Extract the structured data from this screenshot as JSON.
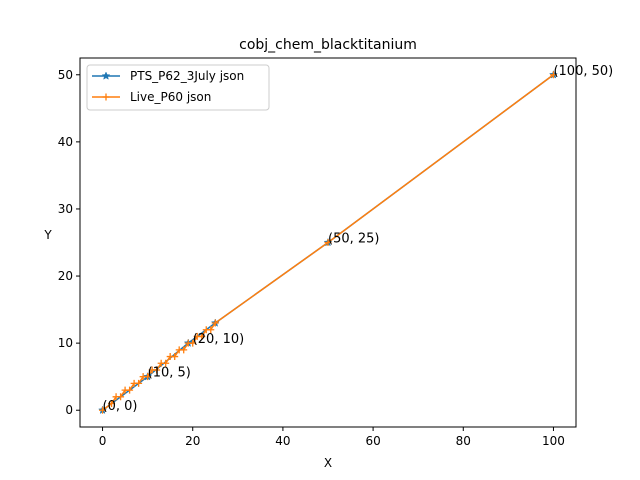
{
  "chart_data": {
    "type": "line",
    "title": "cobj_chem_blacktitanium",
    "xlabel": "X",
    "ylabel": "Y",
    "xlim": [
      -5,
      105
    ],
    "ylim": [
      -2.5,
      52.5
    ],
    "xticks": [
      0,
      20,
      40,
      60,
      80,
      100
    ],
    "yticks": [
      0,
      10,
      20,
      30,
      40,
      50
    ],
    "grid": false,
    "legend_position": "top-left",
    "series": [
      {
        "name": "PTS_P62_3July json",
        "color": "#1f77b4",
        "marker": "star",
        "x": [
          0,
          10,
          19,
          25,
          50,
          100
        ],
        "y": [
          0,
          5,
          10,
          13,
          25,
          50
        ]
      },
      {
        "name": "Live_P60 json",
        "color": "#ff7f0e",
        "marker": "plus",
        "x": [
          0,
          2,
          3,
          4,
          5,
          6,
          7,
          8,
          9,
          10,
          11,
          12,
          13,
          14,
          15,
          16,
          17,
          18,
          19,
          20,
          21,
          22,
          23,
          24,
          25,
          50,
          100
        ],
        "y": [
          0,
          1,
          2,
          2,
          3,
          3,
          4,
          4,
          5,
          5,
          6,
          6,
          7,
          7,
          8,
          8,
          9,
          9,
          10,
          10,
          11,
          11,
          12,
          12,
          13,
          25,
          50
        ]
      }
    ],
    "annotations": [
      {
        "text": "(0, 0)",
        "x": 0,
        "y": 0
      },
      {
        "text": "(10, 5)",
        "x": 10,
        "y": 5
      },
      {
        "text": "(20, 10)",
        "x": 20,
        "y": 10
      },
      {
        "text": "(50, 25)",
        "x": 50,
        "y": 25
      },
      {
        "text": "(100, 50)",
        "x": 100,
        "y": 50
      }
    ]
  }
}
